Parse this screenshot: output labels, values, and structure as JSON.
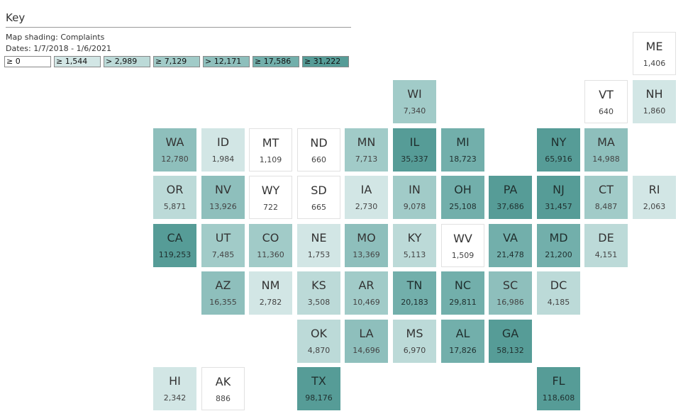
{
  "key": {
    "title": "Key",
    "shading_label": "Map shading: Complaints",
    "dates_label": "Dates: 1/7/2018 - 1/6/2021",
    "legend": [
      {
        "label": "≥ 0",
        "color": "#ffffff"
      },
      {
        "label": "≥ 1,544",
        "color": "#d2e6e5"
      },
      {
        "label": "> 2,989",
        "color": "#bcdad8"
      },
      {
        "label": "≥ 7,129",
        "color": "#a1cbc8"
      },
      {
        "label": "> 12,171",
        "color": "#8ebfbc"
      },
      {
        "label": "≥ 17,586",
        "color": "#72afab"
      },
      {
        "label": "≥ 31,222",
        "color": "#569c97"
      }
    ]
  },
  "states": [
    {
      "abbr": "ME",
      "value": "1,406"
    },
    {
      "abbr": "WI",
      "value": "7,340"
    },
    {
      "abbr": "VT",
      "value": "640"
    },
    {
      "abbr": "NH",
      "value": "1,860"
    },
    {
      "abbr": "WA",
      "value": "12,780"
    },
    {
      "abbr": "ID",
      "value": "1,984"
    },
    {
      "abbr": "MT",
      "value": "1,109"
    },
    {
      "abbr": "ND",
      "value": "660"
    },
    {
      "abbr": "MN",
      "value": "7,713"
    },
    {
      "abbr": "IL",
      "value": "35,337"
    },
    {
      "abbr": "MI",
      "value": "18,723"
    },
    {
      "abbr": "NY",
      "value": "65,916"
    },
    {
      "abbr": "MA",
      "value": "14,988"
    },
    {
      "abbr": "OR",
      "value": "5,871"
    },
    {
      "abbr": "NV",
      "value": "13,926"
    },
    {
      "abbr": "WY",
      "value": "722"
    },
    {
      "abbr": "SD",
      "value": "665"
    },
    {
      "abbr": "IA",
      "value": "2,730"
    },
    {
      "abbr": "IN",
      "value": "9,078"
    },
    {
      "abbr": "OH",
      "value": "25,108"
    },
    {
      "abbr": "PA",
      "value": "37,686"
    },
    {
      "abbr": "NJ",
      "value": "31,457"
    },
    {
      "abbr": "CT",
      "value": "8,487"
    },
    {
      "abbr": "RI",
      "value": "2,063"
    },
    {
      "abbr": "CA",
      "value": "119,253"
    },
    {
      "abbr": "UT",
      "value": "7,485"
    },
    {
      "abbr": "CO",
      "value": "11,360"
    },
    {
      "abbr": "NE",
      "value": "1,753"
    },
    {
      "abbr": "MO",
      "value": "13,369"
    },
    {
      "abbr": "KY",
      "value": "5,113"
    },
    {
      "abbr": "WV",
      "value": "1,509"
    },
    {
      "abbr": "VA",
      "value": "21,478"
    },
    {
      "abbr": "MD",
      "value": "21,200"
    },
    {
      "abbr": "DE",
      "value": "4,151"
    },
    {
      "abbr": "AZ",
      "value": "16,355"
    },
    {
      "abbr": "NM",
      "value": "2,782"
    },
    {
      "abbr": "KS",
      "value": "3,508"
    },
    {
      "abbr": "AR",
      "value": "10,469"
    },
    {
      "abbr": "TN",
      "value": "20,183"
    },
    {
      "abbr": "NC",
      "value": "29,811"
    },
    {
      "abbr": "SC",
      "value": "16,986"
    },
    {
      "abbr": "DC",
      "value": "4,185"
    },
    {
      "abbr": "OK",
      "value": "4,870"
    },
    {
      "abbr": "LA",
      "value": "14,696"
    },
    {
      "abbr": "MS",
      "value": "6,970"
    },
    {
      "abbr": "AL",
      "value": "17,826"
    },
    {
      "abbr": "GA",
      "value": "58,132"
    },
    {
      "abbr": "HI",
      "value": "2,342"
    },
    {
      "abbr": "AK",
      "value": "886"
    },
    {
      "abbr": "TX",
      "value": "98,176"
    },
    {
      "abbr": "FL",
      "value": "118,608"
    }
  ]
}
